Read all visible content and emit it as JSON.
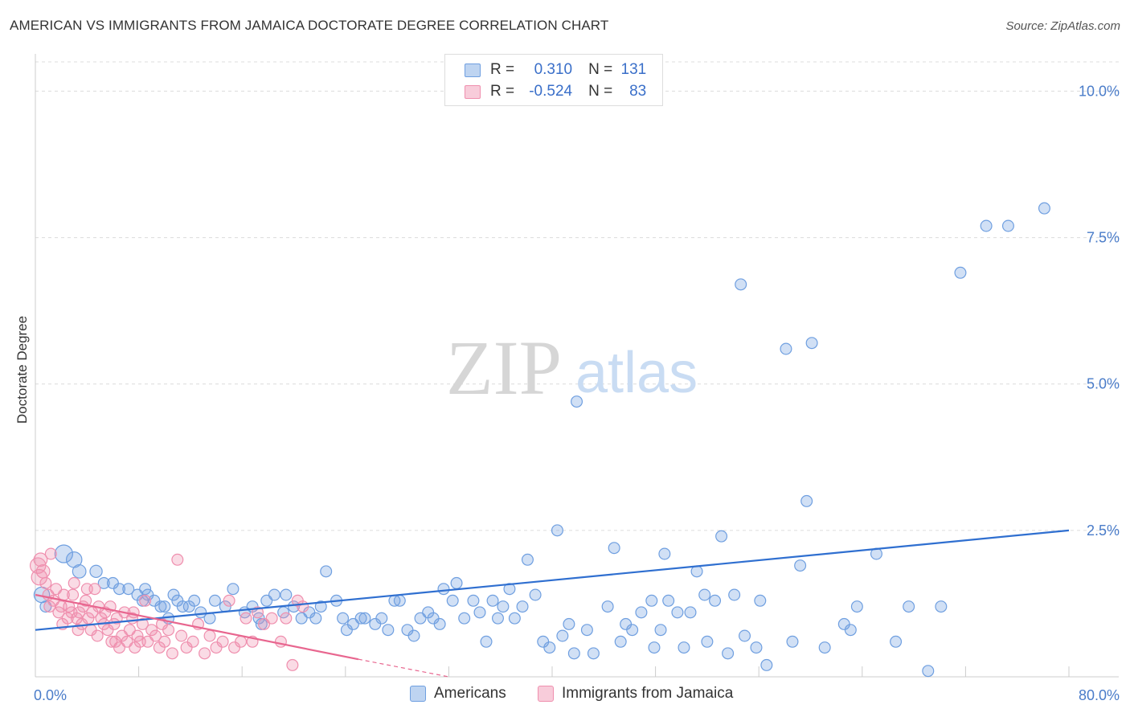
{
  "title": "AMERICAN VS IMMIGRANTS FROM JAMAICA DOCTORATE DEGREE CORRELATION CHART",
  "source": "Source: ZipAtlas.com",
  "watermark": {
    "zip": "ZIP",
    "atlas": "atlas"
  },
  "legend": {
    "rows": [
      {
        "r_label": "R =",
        "r_value": "0.310",
        "n_label": "N =",
        "n_value": "131",
        "color": "#6f9fe0"
      },
      {
        "r_label": "R =",
        "r_value": "-0.524",
        "n_label": "N =",
        "n_value": "83",
        "color": "#ef8fae"
      }
    ]
  },
  "bottom_legend": [
    {
      "label": "Americans",
      "color": "#6f9fe0"
    },
    {
      "label": "Immigrants from Jamaica",
      "color": "#ef8fae"
    }
  ],
  "chart_data": {
    "type": "scatter",
    "title": "AMERICAN VS IMMIGRANTS FROM JAMAICA DOCTORATE DEGREE CORRELATION CHART",
    "xlabel": "",
    "ylabel": "Doctorate Degree",
    "xlim": [
      0,
      80
    ],
    "ylim": [
      0,
      10.5
    ],
    "x_tick_labels": [
      {
        "value": 0,
        "label": "0.0%"
      },
      {
        "value": 80,
        "label": "80.0%"
      }
    ],
    "y_tick_labels": [
      {
        "value": 2.5,
        "label": "2.5%"
      },
      {
        "value": 5.0,
        "label": "5.0%"
      },
      {
        "value": 7.5,
        "label": "7.5%"
      },
      {
        "value": 10.0,
        "label": "10.0%"
      }
    ],
    "x_minor_ticks": [
      8,
      16,
      24,
      32,
      40,
      48,
      56,
      64,
      72,
      80
    ],
    "grid": "dashed horizontal",
    "series": [
      {
        "name": "Americans",
        "color": "#6f9fe0",
        "trend": {
          "x0": 0,
          "y0": 0.8,
          "x1": 80,
          "y1": 2.5
        },
        "points": [
          [
            0.5,
            1.4,
            14
          ],
          [
            0.8,
            1.2,
            10
          ],
          [
            2.2,
            2.1,
            16
          ],
          [
            3.0,
            2.0,
            14
          ],
          [
            3.4,
            1.8,
            12
          ],
          [
            4.7,
            1.8,
            11
          ],
          [
            5.3,
            1.6,
            10
          ],
          [
            6.0,
            1.6,
            10
          ],
          [
            6.5,
            1.5,
            10
          ],
          [
            7.2,
            1.5,
            10
          ],
          [
            7.9,
            1.4,
            10
          ],
          [
            8.3,
            1.3,
            10
          ],
          [
            8.5,
            1.5,
            10
          ],
          [
            8.7,
            1.4,
            10
          ],
          [
            9.2,
            1.3,
            10
          ],
          [
            9.7,
            1.2,
            10
          ],
          [
            10.0,
            1.2,
            10
          ],
          [
            10.3,
            1.0,
            10
          ],
          [
            10.7,
            1.4,
            10
          ],
          [
            11.0,
            1.3,
            10
          ],
          [
            11.4,
            1.2,
            10
          ],
          [
            11.9,
            1.2,
            10
          ],
          [
            12.3,
            1.3,
            10
          ],
          [
            12.8,
            1.1,
            10
          ],
          [
            13.5,
            1.0,
            10
          ],
          [
            13.9,
            1.3,
            10
          ],
          [
            14.7,
            1.2,
            10
          ],
          [
            15.3,
            1.5,
            10
          ],
          [
            16.2,
            1.1,
            10
          ],
          [
            16.8,
            1.2,
            10
          ],
          [
            17.3,
            1.0,
            10
          ],
          [
            17.5,
            0.9,
            10
          ],
          [
            17.9,
            1.3,
            10
          ],
          [
            18.5,
            1.4,
            10
          ],
          [
            19.2,
            1.1,
            10
          ],
          [
            19.4,
            1.4,
            10
          ],
          [
            20.0,
            1.2,
            10
          ],
          [
            20.6,
            1.0,
            10
          ],
          [
            21.2,
            1.1,
            10
          ],
          [
            21.7,
            1.0,
            10
          ],
          [
            22.1,
            1.2,
            10
          ],
          [
            22.5,
            1.8,
            10
          ],
          [
            23.3,
            1.3,
            10
          ],
          [
            23.8,
            1.0,
            10
          ],
          [
            24.1,
            0.8,
            10
          ],
          [
            24.6,
            0.9,
            10
          ],
          [
            25.2,
            1.0,
            10
          ],
          [
            25.5,
            1.0,
            10
          ],
          [
            26.3,
            0.9,
            10
          ],
          [
            26.8,
            1.0,
            10
          ],
          [
            27.3,
            0.8,
            10
          ],
          [
            27.8,
            1.3,
            10
          ],
          [
            28.2,
            1.3,
            10
          ],
          [
            28.8,
            0.8,
            10
          ],
          [
            29.3,
            0.7,
            10
          ],
          [
            29.8,
            1.0,
            10
          ],
          [
            30.4,
            1.1,
            10
          ],
          [
            30.8,
            1.0,
            10
          ],
          [
            31.3,
            0.9,
            10
          ],
          [
            31.6,
            1.5,
            10
          ],
          [
            32.3,
            1.3,
            10
          ],
          [
            32.6,
            1.6,
            10
          ],
          [
            33.2,
            1.0,
            10
          ],
          [
            33.9,
            1.3,
            10
          ],
          [
            34.4,
            1.1,
            10
          ],
          [
            34.9,
            0.6,
            10
          ],
          [
            35.4,
            1.3,
            10
          ],
          [
            35.8,
            1.0,
            10
          ],
          [
            36.2,
            1.2,
            10
          ],
          [
            36.7,
            1.5,
            10
          ],
          [
            37.1,
            1.0,
            10
          ],
          [
            37.7,
            1.2,
            10
          ],
          [
            38.1,
            2.0,
            10
          ],
          [
            38.7,
            1.4,
            10
          ],
          [
            39.3,
            0.6,
            10
          ],
          [
            39.8,
            0.5,
            10
          ],
          [
            40.4,
            2.5,
            10
          ],
          [
            40.8,
            0.7,
            10
          ],
          [
            41.3,
            0.9,
            10
          ],
          [
            41.7,
            0.4,
            10
          ],
          [
            41.9,
            4.7,
            10
          ],
          [
            42.7,
            0.8,
            10
          ],
          [
            43.2,
            0.4,
            10
          ],
          [
            44.3,
            1.2,
            10
          ],
          [
            44.8,
            2.2,
            10
          ],
          [
            45.3,
            0.6,
            10
          ],
          [
            45.7,
            0.9,
            10
          ],
          [
            46.2,
            0.8,
            10
          ],
          [
            46.9,
            1.1,
            10
          ],
          [
            47.7,
            1.3,
            10
          ],
          [
            47.9,
            0.5,
            10
          ],
          [
            48.4,
            0.8,
            10
          ],
          [
            48.7,
            2.1,
            10
          ],
          [
            49.0,
            1.3,
            10
          ],
          [
            49.7,
            1.1,
            10
          ],
          [
            50.2,
            0.5,
            10
          ],
          [
            50.7,
            1.1,
            10
          ],
          [
            51.2,
            1.8,
            10
          ],
          [
            51.8,
            1.4,
            10
          ],
          [
            52.0,
            0.6,
            10
          ],
          [
            52.6,
            1.3,
            10
          ],
          [
            53.1,
            2.4,
            10
          ],
          [
            53.6,
            0.4,
            10
          ],
          [
            54.1,
            1.4,
            10
          ],
          [
            54.6,
            6.7,
            10
          ],
          [
            54.9,
            0.7,
            10
          ],
          [
            55.8,
            0.5,
            10
          ],
          [
            56.1,
            1.3,
            10
          ],
          [
            56.6,
            0.2,
            10
          ],
          [
            58.1,
            5.6,
            10
          ],
          [
            58.6,
            0.6,
            10
          ],
          [
            59.2,
            1.9,
            10
          ],
          [
            59.7,
            3.0,
            10
          ],
          [
            60.1,
            5.7,
            10
          ],
          [
            61.1,
            0.5,
            10
          ],
          [
            62.6,
            0.9,
            10
          ],
          [
            63.1,
            0.8,
            10
          ],
          [
            63.6,
            1.2,
            10
          ],
          [
            65.1,
            2.1,
            10
          ],
          [
            66.6,
            0.6,
            10
          ],
          [
            67.6,
            1.2,
            10
          ],
          [
            69.1,
            0.1,
            10
          ],
          [
            70.1,
            1.2,
            10
          ],
          [
            71.6,
            6.9,
            10
          ],
          [
            73.6,
            7.7,
            10
          ],
          [
            75.3,
            7.7,
            10
          ],
          [
            78.1,
            8.0,
            10
          ]
        ]
      },
      {
        "name": "Immigrants from Jamaica",
        "color": "#ef8fae",
        "trend": {
          "x0": 0,
          "y0": 1.4,
          "x1": 25,
          "y1": 0.3,
          "dash_to_x": 32,
          "dash_to_y": 0.0
        },
        "points": [
          [
            0.2,
            1.9,
            14
          ],
          [
            0.3,
            1.7,
            14
          ],
          [
            0.4,
            2.0,
            12
          ],
          [
            0.6,
            1.8,
            12
          ],
          [
            0.8,
            1.6,
            10
          ],
          [
            1.0,
            1.4,
            10
          ],
          [
            1.2,
            2.1,
            10
          ],
          [
            1.4,
            1.3,
            10
          ],
          [
            1.6,
            1.5,
            10
          ],
          [
            1.8,
            1.1,
            10
          ],
          [
            2.0,
            1.2,
            10
          ],
          [
            2.2,
            1.4,
            10
          ],
          [
            2.5,
            1.0,
            10
          ],
          [
            2.6,
            1.2,
            10
          ],
          [
            2.8,
            1.1,
            10
          ],
          [
            3.0,
            1.6,
            10
          ],
          [
            3.2,
            1.0,
            10
          ],
          [
            3.4,
            1.1,
            10
          ],
          [
            3.6,
            0.9,
            10
          ],
          [
            3.7,
            1.2,
            10
          ],
          [
            3.9,
            1.3,
            10
          ],
          [
            4.1,
            1.0,
            10
          ],
          [
            4.3,
            0.8,
            10
          ],
          [
            4.4,
            1.1,
            10
          ],
          [
            4.6,
            1.5,
            10
          ],
          [
            4.8,
            0.7,
            10
          ],
          [
            4.9,
            1.2,
            10
          ],
          [
            5.1,
            1.0,
            10
          ],
          [
            5.3,
            0.9,
            10
          ],
          [
            5.4,
            1.1,
            10
          ],
          [
            5.6,
            0.8,
            10
          ],
          [
            5.8,
            1.2,
            10
          ],
          [
            5.9,
            0.6,
            10
          ],
          [
            6.1,
            0.9,
            10
          ],
          [
            6.3,
            1.0,
            10
          ],
          [
            6.5,
            0.5,
            10
          ],
          [
            6.7,
            0.7,
            10
          ],
          [
            6.9,
            1.1,
            10
          ],
          [
            7.1,
            0.6,
            10
          ],
          [
            7.3,
            0.8,
            10
          ],
          [
            7.5,
            1.0,
            10
          ],
          [
            7.7,
            0.5,
            10
          ],
          [
            7.9,
            0.7,
            10
          ],
          [
            8.1,
            0.6,
            10
          ],
          [
            8.3,
            0.9,
            10
          ],
          [
            8.5,
            1.3,
            10
          ],
          [
            8.7,
            0.6,
            10
          ],
          [
            9.0,
            0.8,
            10
          ],
          [
            9.3,
            0.7,
            10
          ],
          [
            9.6,
            0.5,
            10
          ],
          [
            10.0,
            0.6,
            10
          ],
          [
            10.3,
            0.8,
            10
          ],
          [
            10.6,
            0.4,
            10
          ],
          [
            11.0,
            2.0,
            10
          ],
          [
            11.3,
            0.7,
            10
          ],
          [
            11.7,
            0.5,
            10
          ],
          [
            12.2,
            0.6,
            10
          ],
          [
            12.6,
            0.9,
            10
          ],
          [
            13.1,
            0.4,
            10
          ],
          [
            13.5,
            0.7,
            10
          ],
          [
            14.0,
            0.5,
            10
          ],
          [
            14.5,
            0.6,
            10
          ],
          [
            15.0,
            1.3,
            10
          ],
          [
            15.4,
            0.5,
            10
          ],
          [
            15.9,
            0.6,
            10
          ],
          [
            16.3,
            1.0,
            10
          ],
          [
            16.8,
            0.6,
            10
          ],
          [
            17.2,
            1.1,
            10
          ],
          [
            17.7,
            0.9,
            10
          ],
          [
            18.3,
            1.0,
            10
          ],
          [
            19.0,
            0.6,
            10
          ],
          [
            19.4,
            1.0,
            10
          ],
          [
            19.9,
            0.2,
            10
          ],
          [
            20.3,
            1.3,
            10
          ],
          [
            20.7,
            1.2,
            10
          ],
          [
            2.1,
            0.9,
            10
          ],
          [
            2.9,
            1.4,
            10
          ],
          [
            3.3,
            0.8,
            10
          ],
          [
            4.0,
            1.5,
            10
          ],
          [
            1.1,
            1.2,
            10
          ],
          [
            6.2,
            0.6,
            10
          ],
          [
            7.6,
            1.1,
            10
          ],
          [
            9.8,
            0.9,
            10
          ]
        ]
      }
    ]
  }
}
